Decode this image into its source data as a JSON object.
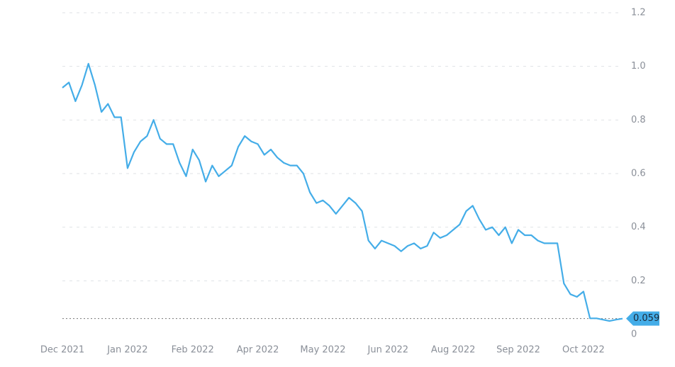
{
  "chart_data": {
    "type": "line",
    "categories": [
      "Dec 2021",
      null,
      null,
      null,
      null,
      null,
      null,
      null,
      null,
      null,
      "Jan 2022",
      null,
      null,
      null,
      null,
      null,
      null,
      null,
      null,
      null,
      "Feb 2022",
      null,
      null,
      null,
      null,
      null,
      null,
      null,
      null,
      null,
      "Apr 2022",
      null,
      null,
      null,
      null,
      null,
      null,
      null,
      null,
      null,
      "May 2022",
      null,
      null,
      null,
      null,
      null,
      null,
      null,
      null,
      null,
      "Jun 2022",
      null,
      null,
      null,
      null,
      null,
      null,
      null,
      null,
      null,
      "Aug 2022",
      null,
      null,
      null,
      null,
      null,
      null,
      null,
      null,
      null,
      "Sep 2022",
      null,
      null,
      null,
      null,
      null,
      null,
      null,
      null,
      null,
      "Oct 2022",
      null,
      null,
      null,
      null,
      null,
      null
    ],
    "series": [
      {
        "color": "#44ade8",
        "values": [
          0.92,
          0.94,
          0.87,
          0.93,
          1.01,
          0.93,
          0.83,
          0.86,
          0.81,
          0.81,
          0.62,
          0.68,
          0.72,
          0.74,
          0.8,
          0.73,
          0.71,
          0.71,
          0.64,
          0.59,
          0.69,
          0.65,
          0.57,
          0.63,
          0.59,
          0.61,
          0.63,
          0.7,
          0.74,
          0.72,
          0.71,
          0.67,
          0.69,
          0.66,
          0.64,
          0.63,
          0.63,
          0.6,
          0.53,
          0.49,
          0.5,
          0.48,
          0.45,
          0.48,
          0.51,
          0.49,
          0.46,
          0.35,
          0.32,
          0.35,
          0.34,
          0.33,
          0.31,
          0.33,
          0.34,
          0.32,
          0.33,
          0.38,
          0.36,
          0.37,
          0.39,
          0.41,
          0.46,
          0.48,
          0.43,
          0.39,
          0.4,
          0.37,
          0.4,
          0.34,
          0.39,
          0.37,
          0.37,
          0.35,
          0.34,
          0.34,
          0.34,
          0.19,
          0.15,
          0.14,
          0.16,
          0.06,
          0.06,
          0.055,
          0.05,
          0.055,
          0.059
        ]
      }
    ],
    "current_value": 0.059,
    "ylim": [
      0,
      1.2
    ],
    "yticks": [
      0,
      0.2,
      0.4,
      0.6,
      0.8,
      {
        "value": 1,
        "label": "1.0"
      },
      1.2
    ],
    "grid": true
  }
}
